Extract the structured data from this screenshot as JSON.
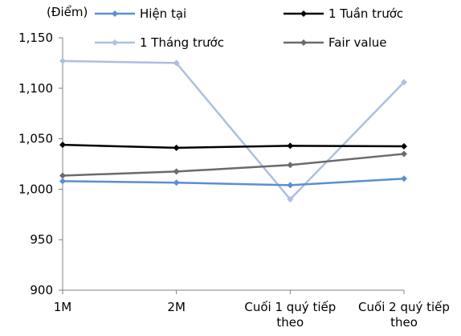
{
  "chart_data": {
    "type": "line",
    "ylabel": "(Điểm)",
    "ylim": [
      900,
      1150
    ],
    "ytick_step": 50,
    "yticks": [
      "900",
      "950",
      "1,000",
      "1,050",
      "1,100",
      "1,150"
    ],
    "categories": [
      [
        "1M"
      ],
      [
        "2M"
      ],
      [
        "Cuối 1 quý tiếp",
        "theo"
      ],
      [
        "Cuối 2 quý tiếp",
        "theo"
      ]
    ],
    "grid": false,
    "legend_position": "top",
    "series": [
      {
        "name": "Hiện tại",
        "color": "#5b8fd0",
        "values": [
          1008,
          1006.5,
          1004,
          1010.5
        ]
      },
      {
        "name": "1 Tuần trước",
        "color": "#000000",
        "values": [
          1044,
          1041,
          1043,
          1042.5
        ]
      },
      {
        "name": "1 Tháng trước",
        "color": "#aebfdf",
        "values": [
          1127,
          1125,
          990,
          1106
        ]
      },
      {
        "name": "Fair value",
        "color": "#6b6b6b",
        "values": [
          1013.5,
          1017.5,
          1024,
          1035
        ]
      }
    ]
  }
}
